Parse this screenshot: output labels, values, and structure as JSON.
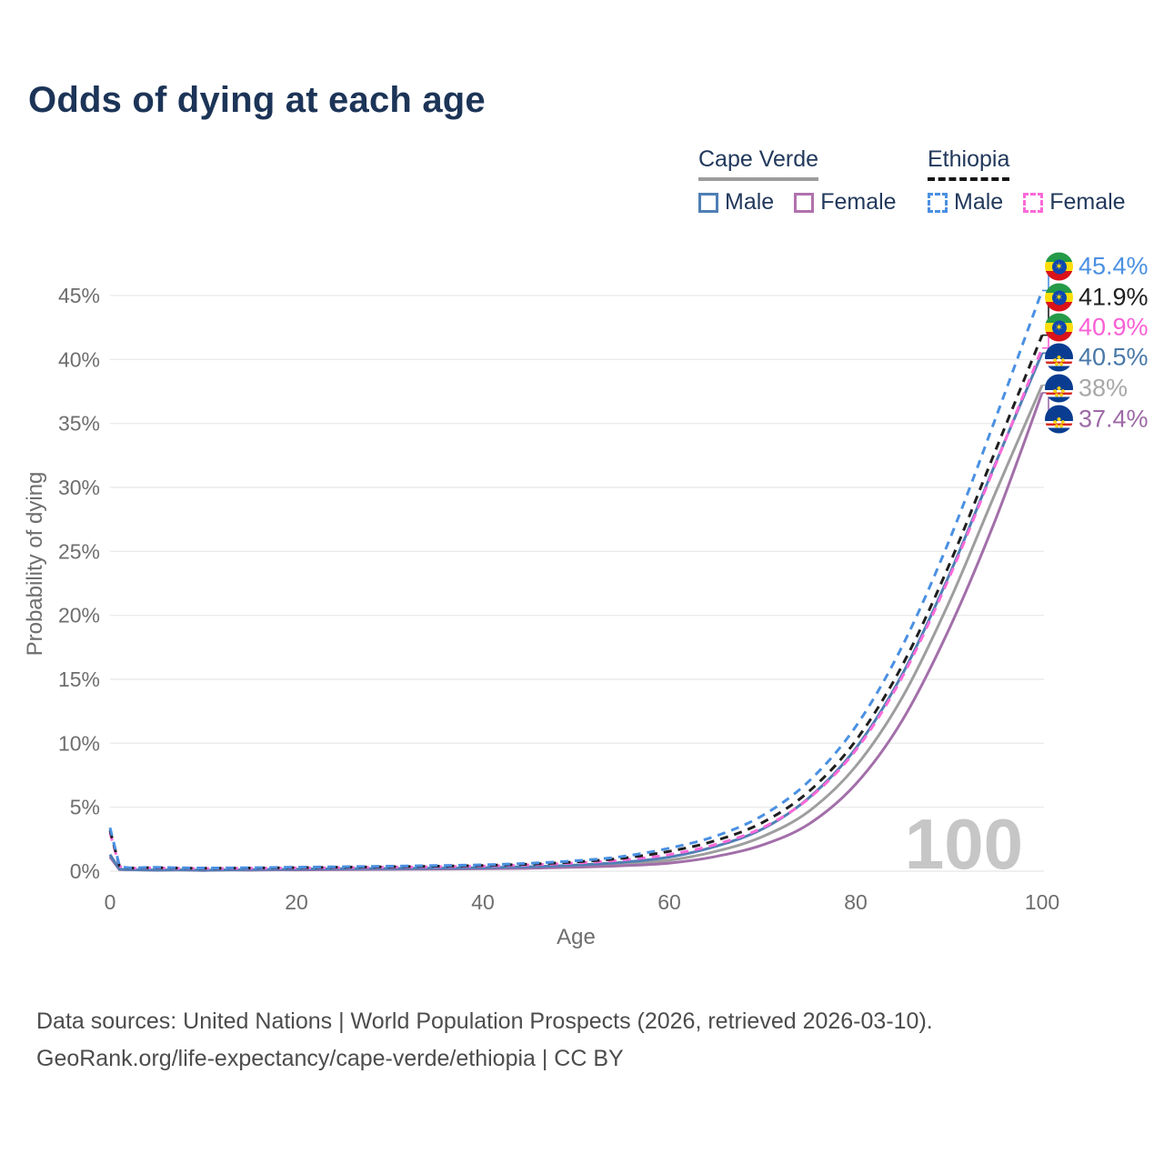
{
  "title": "Odds of dying at each age",
  "legend": {
    "groups": [
      {
        "id": "cape-verde",
        "label": "Cape Verde",
        "line_style": "solid",
        "line_color": "#9c9c9c",
        "items": [
          {
            "label": "Male",
            "color": "#4f7fb5",
            "dashed": false
          },
          {
            "label": "Female",
            "color": "#b071ad",
            "dashed": false
          }
        ]
      },
      {
        "id": "ethiopia",
        "label": "Ethiopia",
        "line_style": "dashed",
        "line_color": "#161616",
        "items": [
          {
            "label": "Male",
            "color": "#4a90e2",
            "dashed": true
          },
          {
            "label": "Female",
            "color": "#fb6ad9",
            "dashed": true
          }
        ]
      }
    ]
  },
  "chart_data": {
    "type": "line",
    "title": "Odds of dying at each age",
    "xlabel": "Age",
    "ylabel": "Probability of dying",
    "xlim": [
      0,
      100
    ],
    "ylim": [
      0,
      47
    ],
    "x_ticks": [
      0,
      20,
      40,
      60,
      80,
      100
    ],
    "y_ticks": [
      "0%",
      "5%",
      "10%",
      "15%",
      "20%",
      "25%",
      "30%",
      "35%",
      "40%",
      "45%"
    ],
    "grid": "horizontal",
    "legend_position": "top-right",
    "watermark": "100",
    "x": [
      0,
      1,
      5,
      10,
      15,
      20,
      25,
      30,
      35,
      40,
      45,
      50,
      55,
      60,
      65,
      70,
      75,
      80,
      85,
      90,
      95,
      100
    ],
    "series": [
      {
        "name": "Cape Verde Both sexes",
        "color": "#9e9e9e",
        "dashed": false,
        "values": [
          1.2,
          0.14,
          0.08,
          0.07,
          0.1,
          0.13,
          0.15,
          0.17,
          0.2,
          0.23,
          0.29,
          0.39,
          0.56,
          0.85,
          1.55,
          2.7,
          4.7,
          8.2,
          13.6,
          21.0,
          29.6,
          38.0
        ]
      },
      {
        "name": "Cape Verde Female",
        "color": "#a26fa9",
        "dashed": false,
        "values": [
          1.1,
          0.13,
          0.07,
          0.06,
          0.08,
          0.1,
          0.12,
          0.14,
          0.16,
          0.19,
          0.23,
          0.31,
          0.43,
          0.63,
          1.15,
          2.05,
          3.7,
          6.8,
          11.8,
          18.9,
          27.5,
          37.4
        ]
      },
      {
        "name": "Cape Verde Male",
        "color": "#4f7fb5",
        "dashed": false,
        "values": [
          1.3,
          0.16,
          0.09,
          0.08,
          0.12,
          0.16,
          0.19,
          0.21,
          0.24,
          0.28,
          0.35,
          0.48,
          0.7,
          1.1,
          1.95,
          3.3,
          5.75,
          9.6,
          15.4,
          23.1,
          31.9,
          40.5
        ]
      },
      {
        "name": "Ethiopia Female",
        "color": "#fb6ad9",
        "dashed": true,
        "values": [
          3.0,
          0.4,
          0.26,
          0.21,
          0.23,
          0.25,
          0.28,
          0.31,
          0.35,
          0.4,
          0.49,
          0.64,
          0.88,
          1.3,
          2.1,
          3.4,
          5.7,
          9.45,
          15.2,
          22.9,
          31.8,
          40.9
        ]
      },
      {
        "name": "Ethiopia Both sexes",
        "color": "#1f1f1f",
        "dashed": true,
        "values": [
          3.2,
          0.42,
          0.28,
          0.23,
          0.25,
          0.28,
          0.31,
          0.35,
          0.39,
          0.45,
          0.55,
          0.73,
          1.02,
          1.55,
          2.4,
          3.8,
          6.25,
          10.2,
          16.1,
          23.9,
          32.9,
          41.9
        ]
      },
      {
        "name": "Ethiopia Male",
        "color": "#4a90e2",
        "dashed": true,
        "values": [
          3.4,
          0.45,
          0.3,
          0.25,
          0.27,
          0.31,
          0.35,
          0.39,
          0.44,
          0.5,
          0.62,
          0.82,
          1.15,
          1.8,
          2.75,
          4.35,
          7.05,
          11.3,
          17.6,
          25.8,
          35.4,
          45.4
        ]
      }
    ],
    "end_labels": [
      {
        "series": "Ethiopia Male",
        "text": "45.4%",
        "value": 45.4,
        "color": "#4a90e2",
        "flag": "ethiopia"
      },
      {
        "series": "Ethiopia Both sexes",
        "text": "41.9%",
        "value": 41.9,
        "color": "#1f1f1f",
        "flag": "ethiopia"
      },
      {
        "series": "Ethiopia Female",
        "text": "40.9%",
        "value": 40.9,
        "color": "#f95fd5",
        "flag": "ethiopia"
      },
      {
        "series": "Cape Verde Male",
        "text": "40.5%",
        "value": 40.5,
        "color": "#4878a8",
        "flag": "cape-verde"
      },
      {
        "series": "Cape Verde Both sexes",
        "text": "38%",
        "value": 38,
        "color": "#a8a8a8",
        "flag": "cape-verde"
      },
      {
        "series": "Cape Verde Female",
        "text": "37.4%",
        "value": 37.4,
        "color": "#9d6aa6",
        "flag": "cape-verde"
      }
    ]
  },
  "footer": {
    "line1": "Data sources: United Nations | World Population Prospects (2026, retrieved 2026-03-10).",
    "line2": "GeoRank.org/life-expectancy/cape-verde/ethiopia | CC BY"
  }
}
